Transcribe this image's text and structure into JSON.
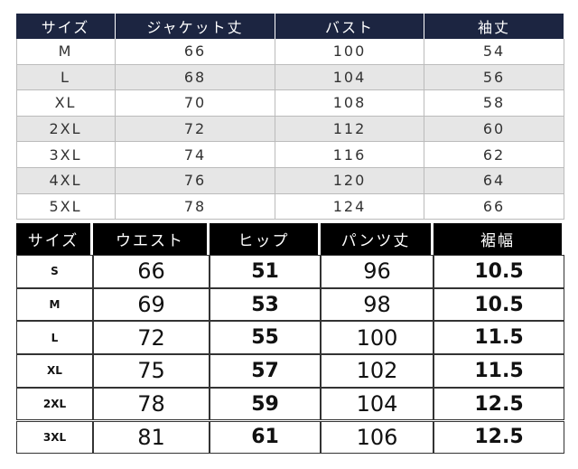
{
  "top_table": {
    "header": [
      "サイズ",
      "ジャケット丈",
      "バスト",
      "袖丈"
    ],
    "rows": [
      [
        "M",
        66,
        100,
        54
      ],
      [
        "L",
        68,
        104,
        56
      ],
      [
        "XL",
        70,
        108,
        58
      ],
      [
        "2XL",
        72,
        112,
        60
      ],
      [
        "3XL",
        74,
        116,
        62
      ],
      [
        "4XL",
        76,
        120,
        64
      ],
      [
        "5XL",
        78,
        124,
        66
      ]
    ]
  },
  "bottom_table": {
    "header": [
      "サイズ",
      "ウエスト",
      "ヒップ",
      "パンツ丈",
      "裾幅"
    ],
    "rows": [
      [
        "S",
        66,
        51,
        96,
        10.5
      ],
      [
        "M",
        69,
        53,
        98,
        10.5
      ],
      [
        "L",
        72,
        55,
        100,
        11.5
      ],
      [
        "XL",
        75,
        57,
        102,
        11.5
      ],
      [
        "2XL",
        78,
        59,
        104,
        12.5
      ],
      [
        "3XL",
        81,
        61,
        106,
        12.5
      ]
    ]
  }
}
